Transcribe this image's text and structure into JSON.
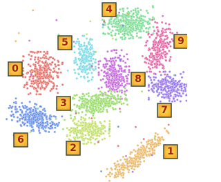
{
  "clusters": [
    {
      "label": "4",
      "color": "#6fd88a"
    },
    {
      "label": "9",
      "color": "#e0559a"
    },
    {
      "label": "5",
      "color": "#6fd6e0"
    },
    {
      "label": "0",
      "color": "#e2605a"
    },
    {
      "label": "8",
      "color": "#c05ad8"
    },
    {
      "label": "7",
      "color": "#8d6ae6"
    },
    {
      "label": "3",
      "color": "#8ed85a"
    },
    {
      "label": "6",
      "color": "#5a86e6"
    },
    {
      "label": "2",
      "color": "#bcdc5a"
    },
    {
      "label": "1",
      "color": "#e6b25a"
    }
  ]
}
